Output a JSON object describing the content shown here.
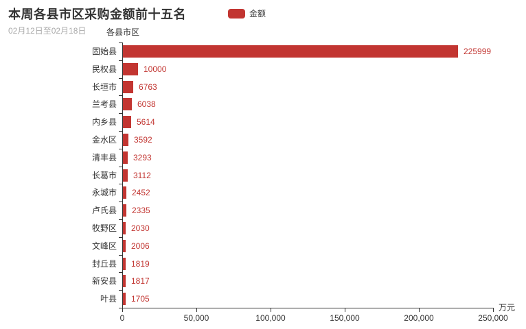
{
  "header": {
    "title": "本周各县市区采购金额前十五名",
    "subtitle": "02月12日至02月18日"
  },
  "legend": {
    "label": "金额",
    "color": "#c23531"
  },
  "chart_data": {
    "type": "bar",
    "orientation": "horizontal",
    "title": "本周各县市区采购金额前十五名",
    "subtitle": "02月12日至02月18日",
    "series_name": "金额",
    "y_axis_name": "各县市区",
    "x_axis_name": "万元",
    "categories": [
      "固始县",
      "民权县",
      "长垣市",
      "兰考县",
      "内乡县",
      "金水区",
      "清丰县",
      "长葛市",
      "永城市",
      "卢氏县",
      "牧野区",
      "文峰区",
      "封丘县",
      "新安县",
      "叶县"
    ],
    "values": [
      225999,
      10000,
      6763,
      6038,
      5614,
      3592,
      3293,
      3112,
      2452,
      2335,
      2030,
      2006,
      1819,
      1817,
      1705
    ],
    "xlim": [
      0,
      250000
    ],
    "x_ticks": [
      0,
      50000,
      100000,
      150000,
      200000,
      250000
    ],
    "x_tick_labels": [
      "0",
      "50,000",
      "100,000",
      "150,000",
      "200,000",
      "250,000"
    ],
    "bar_color": "#c23531",
    "value_label_color": "#c23531",
    "axis_color": "#333333",
    "grid": false,
    "legend_position": "top"
  }
}
